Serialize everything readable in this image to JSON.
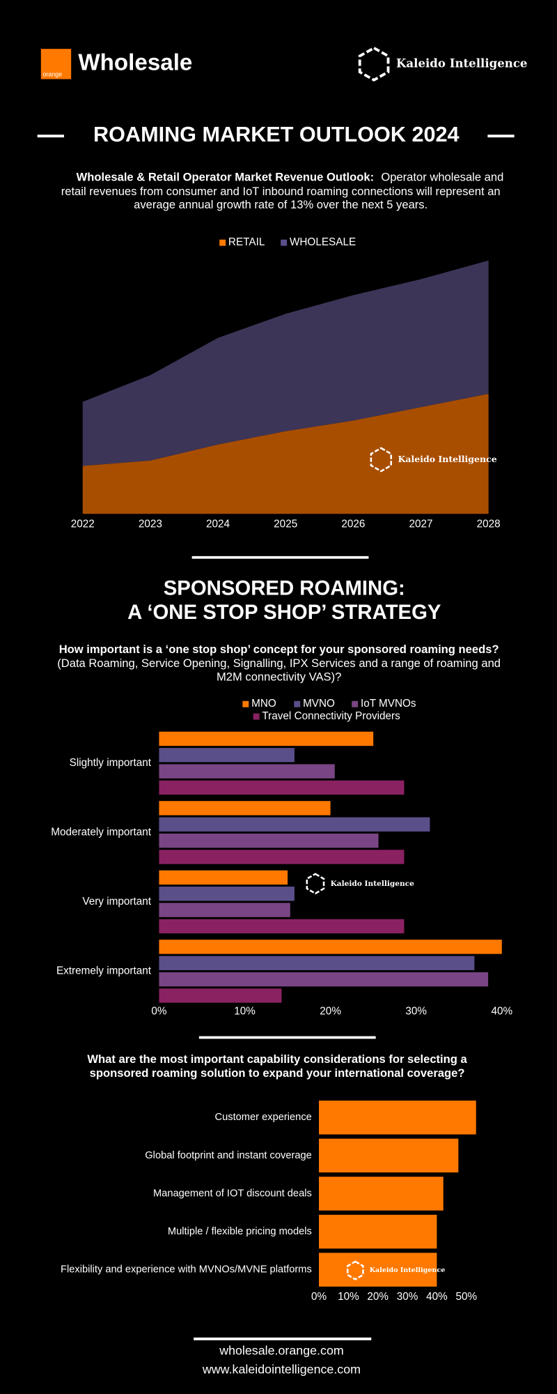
{
  "header": {
    "logo_text": "orange",
    "brand": "Wholesale",
    "partner": "Kaleido Intelligence",
    "title": "ROAMING MARKET OUTLOOK 2024"
  },
  "intro": {
    "lead": "Wholesale & Retail Operator Market Revenue Outlook:",
    "lines": [
      "Operator wholesale and",
      "retail revenues from consumer and IoT inbound roaming connections will represent an",
      "average annual growth rate of 13% over the next 5 years."
    ]
  },
  "section2": {
    "title_lines": [
      "SPONSORED ROAMING:",
      "A ‘ONE STOP SHOP’ STRATEGY"
    ]
  },
  "chart_data": [
    {
      "type": "area",
      "stacked": true,
      "watermark": "Kaleido Intelligence",
      "categories": [
        "2022",
        "2023",
        "2024",
        "2025",
        "2026",
        "2027",
        "2028"
      ],
      "ylim": [
        0,
        100
      ],
      "series": [
        {
          "name": "RETAIL",
          "color": "#a84e00",
          "legend_color": "#ff7900",
          "values": [
            18,
            20,
            26,
            31,
            35,
            40,
            45
          ]
        },
        {
          "name": "WHOLESALE",
          "color": "#3d3558",
          "legend_color": "#5b4f8a",
          "values": [
            24,
            32,
            40,
            44,
            47,
            48,
            50
          ]
        }
      ]
    },
    {
      "type": "bar",
      "orientation": "horizontal",
      "watermark": "Kaleido Intelligence",
      "title": "How important is a ‘one stop shop’ concept for your sponsored roaming needs?",
      "subtitle_lines": [
        "(Data Roaming, Service Opening, Signalling, IPX Services and a range of roaming and",
        "M2M connectivity VAS)?"
      ],
      "categories": [
        "Slightly important",
        "Moderately important",
        "Very important",
        "Extremely important"
      ],
      "xlim": [
        0,
        40
      ],
      "xticks": [
        {
          "value": 0,
          "label": "0%"
        },
        {
          "value": 10,
          "label": "10%"
        },
        {
          "value": 20,
          "label": "20%"
        },
        {
          "value": 30,
          "label": "30%"
        },
        {
          "value": 40,
          "label": "40%"
        }
      ],
      "series": [
        {
          "name": "MNO",
          "color": "#ff7900",
          "values": [
            25,
            20,
            15,
            40
          ]
        },
        {
          "name": "MVNO",
          "color": "#5b4f8a",
          "values": [
            15.8,
            31.6,
            15.8,
            36.8
          ]
        },
        {
          "name": "IoT MVNOs",
          "color": "#7a4585",
          "values": [
            20.5,
            25.6,
            15.3,
            38.4
          ]
        },
        {
          "name": "Travel Connectivity Providers",
          "color": "#8a2262",
          "values": [
            28.6,
            28.6,
            28.6,
            14.3
          ]
        }
      ]
    },
    {
      "type": "bar",
      "orientation": "horizontal",
      "watermark": "Kaleido Intelligence",
      "title_lines": [
        "What are the most important capability considerations for selecting a",
        "sponsored roaming solution to expand your international coverage?"
      ],
      "categories": [
        "Customer experience",
        "Global footprint and instant coverage",
        "Management of IOT discount deals",
        "Multiple / flexible pricing models",
        "Flexibility and experience with MVNOs/MVNE platforms"
      ],
      "values": [
        53.3,
        47.3,
        42.2,
        40,
        40
      ],
      "color": "#ff7900",
      "xlim": [
        0,
        55
      ],
      "xticks": [
        {
          "value": 0,
          "label": "0%"
        },
        {
          "value": 10,
          "label": "10%"
        },
        {
          "value": 20,
          "label": "20%"
        },
        {
          "value": 30,
          "label": "30%"
        },
        {
          "value": 40,
          "label": "40%"
        },
        {
          "value": 50,
          "label": "50%"
        }
      ]
    }
  ],
  "footer": {
    "links": [
      "wholesale.orange.com",
      "www.kaleidointelligence.com"
    ]
  }
}
